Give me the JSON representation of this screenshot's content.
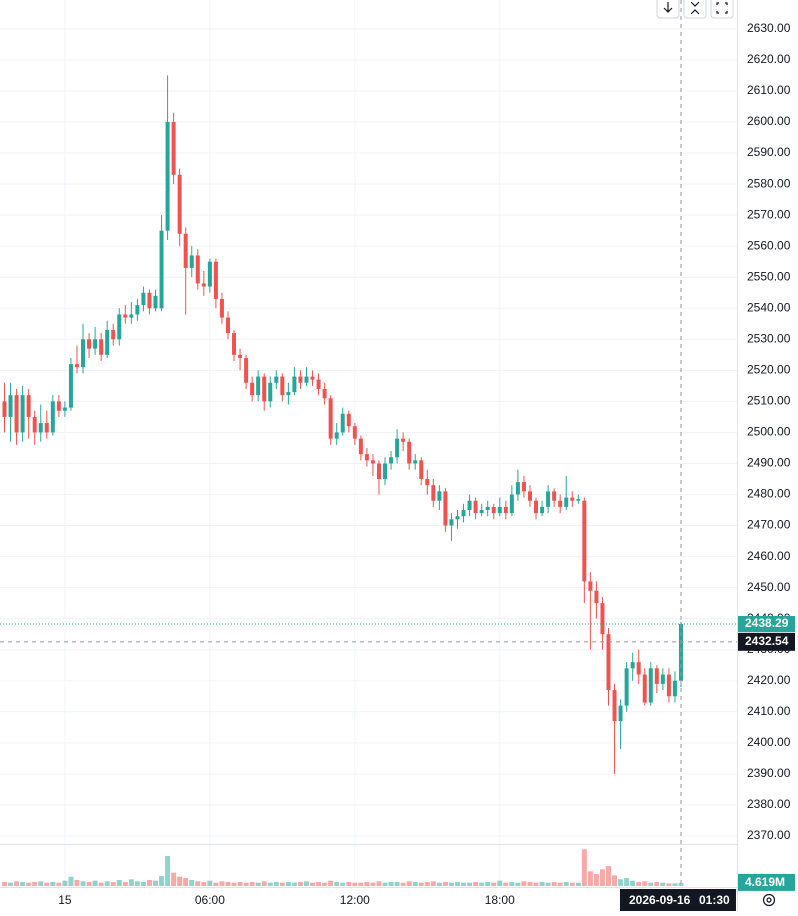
{
  "chart_data": {
    "type": "candlestick",
    "x": [
      "2026-09-14 21:30",
      "2026-09-14 21:45",
      "2026-09-14 22:00",
      "2026-09-14 22:15",
      "2026-09-14 22:30",
      "2026-09-14 22:45",
      "2026-09-14 23:00",
      "2026-09-14 23:15",
      "2026-09-14 23:30",
      "2026-09-14 23:45",
      "2026-09-15 00:00",
      "2026-09-15 00:15",
      "2026-09-15 00:30",
      "2026-09-15 00:45",
      "2026-09-15 01:00",
      "2026-09-15 01:15",
      "2026-09-15 01:30",
      "2026-09-15 01:45",
      "2026-09-15 02:00",
      "2026-09-15 02:15",
      "2026-09-15 02:30",
      "2026-09-15 02:45",
      "2026-09-15 03:00",
      "2026-09-15 03:15",
      "2026-09-15 03:30",
      "2026-09-15 03:45",
      "2026-09-15 04:00",
      "2026-09-15 04:15",
      "2026-09-15 04:30",
      "2026-09-15 04:45",
      "2026-09-15 05:00",
      "2026-09-15 05:15",
      "2026-09-15 05:30",
      "2026-09-15 05:45",
      "2026-09-15 06:00",
      "2026-09-15 06:15",
      "2026-09-15 06:30",
      "2026-09-15 06:45",
      "2026-09-15 07:00",
      "2026-09-15 07:15",
      "2026-09-15 07:30",
      "2026-09-15 07:45",
      "2026-09-15 08:00",
      "2026-09-15 08:15",
      "2026-09-15 08:30",
      "2026-09-15 08:45",
      "2026-09-15 09:00",
      "2026-09-15 09:15",
      "2026-09-15 09:30",
      "2026-09-15 09:45",
      "2026-09-15 10:00",
      "2026-09-15 10:15",
      "2026-09-15 10:30",
      "2026-09-15 10:45",
      "2026-09-15 11:00",
      "2026-09-15 11:15",
      "2026-09-15 11:30",
      "2026-09-15 11:45",
      "2026-09-15 12:00",
      "2026-09-15 12:15",
      "2026-09-15 12:30",
      "2026-09-15 12:45",
      "2026-09-15 13:00",
      "2026-09-15 13:15",
      "2026-09-15 13:30",
      "2026-09-15 13:45",
      "2026-09-15 14:00",
      "2026-09-15 14:15",
      "2026-09-15 14:30",
      "2026-09-15 14:45",
      "2026-09-15 15:00",
      "2026-09-15 15:15",
      "2026-09-15 15:30",
      "2026-09-15 15:45",
      "2026-09-15 16:00",
      "2026-09-15 16:15",
      "2026-09-15 16:30",
      "2026-09-15 16:45",
      "2026-09-15 17:00",
      "2026-09-15 17:15",
      "2026-09-15 17:30",
      "2026-09-15 17:45",
      "2026-09-15 18:00",
      "2026-09-15 18:15",
      "2026-09-15 18:30",
      "2026-09-15 18:45",
      "2026-09-15 19:00",
      "2026-09-15 19:15",
      "2026-09-15 19:30",
      "2026-09-15 19:45",
      "2026-09-15 20:00",
      "2026-09-15 20:15",
      "2026-09-15 20:30",
      "2026-09-15 20:45",
      "2026-09-15 21:00",
      "2026-09-15 21:15",
      "2026-09-15 21:30",
      "2026-09-15 21:45",
      "2026-09-15 22:00",
      "2026-09-15 22:15",
      "2026-09-15 22:30",
      "2026-09-15 22:45",
      "2026-09-15 23:00",
      "2026-09-15 23:15",
      "2026-09-15 23:30",
      "2026-09-15 23:45",
      "2026-09-16 00:00",
      "2026-09-16 00:15",
      "2026-09-16 00:30",
      "2026-09-16 00:45",
      "2026-09-16 01:00",
      "2026-09-16 01:15",
      "2026-09-16 01:30"
    ],
    "open": [
      2510,
      2505,
      2512,
      2500,
      2512,
      2505,
      2500,
      2503,
      2500,
      2510,
      2507,
      2508,
      2522,
      2521,
      2530,
      2527,
      2530,
      2525,
      2533,
      2530,
      2538,
      2537,
      2538,
      2541,
      2545,
      2540,
      2540,
      2565,
      2600,
      2583,
      2564,
      2553,
      2557,
      2548,
      2547,
      2555,
      2543,
      2537,
      2532,
      2525,
      2524,
      2516,
      2512,
      2518,
      2510,
      2516,
      2518,
      2512,
      2513,
      2518,
      2516,
      2518,
      2517,
      2514,
      2511,
      2498,
      2500,
      2506,
      2502,
      2498,
      2493,
      2491,
      2490,
      2485,
      2490,
      2492,
      2498,
      2497,
      2490,
      2491,
      2485,
      2483,
      2478,
      2481,
      2470,
      2472,
      2473,
      2475,
      2478,
      2474,
      2475,
      2476,
      2474,
      2476,
      2474,
      2480,
      2484,
      2481,
      2478,
      2474,
      2476,
      2481,
      2478,
      2476,
      2479,
      2478,
      2478,
      2452,
      2449,
      2445,
      2435,
      2417,
      2407,
      2412,
      2424,
      2426,
      2422,
      2413,
      2424,
      2419,
      2422,
      2415,
      2420
    ],
    "high": [
      2516,
      2516,
      2514,
      2515,
      2514,
      2507,
      2509,
      2507,
      2512,
      2512,
      2510,
      2524,
      2528,
      2535,
      2532,
      2534,
      2532,
      2536,
      2535,
      2540,
      2541,
      2542,
      2543,
      2547,
      2546,
      2546,
      2570,
      2615,
      2603,
      2585,
      2566,
      2560,
      2559,
      2552,
      2556,
      2556,
      2545,
      2539,
      2533,
      2527,
      2525,
      2518,
      2520,
      2519,
      2518,
      2520,
      2519,
      2516,
      2521,
      2520,
      2521,
      2520,
      2519,
      2516,
      2512,
      2503,
      2508,
      2507,
      2503,
      2499,
      2495,
      2493,
      2491,
      2492,
      2494,
      2501,
      2500,
      2498,
      2493,
      2492,
      2488,
      2485,
      2483,
      2482,
      2474,
      2475,
      2477,
      2480,
      2479,
      2477,
      2478,
      2477,
      2479,
      2478,
      2483,
      2488,
      2486,
      2483,
      2479,
      2478,
      2483,
      2482,
      2480,
      2486,
      2481,
      2480,
      2479,
      2455,
      2452,
      2447,
      2437,
      2419,
      2414,
      2426,
      2429,
      2430,
      2424,
      2426,
      2425,
      2424,
      2424,
      2423,
      2439
    ],
    "low": [
      2500,
      2497,
      2496,
      2497,
      2498,
      2496,
      2497,
      2498,
      2499,
      2505,
      2505,
      2507,
      2519,
      2519,
      2524,
      2525,
      2523,
      2524,
      2528,
      2528,
      2535,
      2535,
      2536,
      2539,
      2538,
      2539,
      2539,
      2562,
      2580,
      2560,
      2538,
      2550,
      2546,
      2544,
      2545,
      2540,
      2535,
      2530,
      2523,
      2520,
      2514,
      2510,
      2510,
      2507,
      2508,
      2514,
      2510,
      2509,
      2512,
      2514,
      2515,
      2515,
      2512,
      2509,
      2496,
      2496,
      2499,
      2500,
      2496,
      2491,
      2489,
      2486,
      2480,
      2483,
      2488,
      2490,
      2494,
      2488,
      2488,
      2483,
      2480,
      2476,
      2475,
      2468,
      2465,
      2469,
      2471,
      2473,
      2472,
      2473,
      2473,
      2472,
      2473,
      2472,
      2473,
      2478,
      2479,
      2476,
      2472,
      2473,
      2474,
      2476,
      2474,
      2475,
      2476,
      2477,
      2445,
      2430,
      2440,
      2430,
      2412,
      2390,
      2398,
      2410,
      2420,
      2419,
      2412,
      2412,
      2416,
      2417,
      2413,
      2413,
      2418
    ],
    "close": [
      2505,
      2512,
      2500,
      2512,
      2505,
      2500,
      2503,
      2500,
      2510,
      2507,
      2508,
      2522,
      2521,
      2530,
      2527,
      2530,
      2525,
      2533,
      2530,
      2538,
      2537,
      2538,
      2541,
      2545,
      2540,
      2544,
      2565,
      2600,
      2583,
      2564,
      2553,
      2557,
      2548,
      2547,
      2555,
      2543,
      2537,
      2532,
      2525,
      2524,
      2516,
      2512,
      2518,
      2510,
      2516,
      2518,
      2512,
      2513,
      2518,
      2516,
      2518,
      2517,
      2514,
      2511,
      2498,
      2500,
      2506,
      2502,
      2498,
      2493,
      2491,
      2490,
      2485,
      2490,
      2492,
      2498,
      2497,
      2490,
      2491,
      2485,
      2483,
      2478,
      2481,
      2470,
      2472,
      2473,
      2475,
      2478,
      2474,
      2475,
      2476,
      2474,
      2476,
      2474,
      2480,
      2484,
      2481,
      2478,
      2474,
      2476,
      2481,
      2478,
      2476,
      2479,
      2478,
      2478.5,
      2452,
      2449,
      2445,
      2435,
      2417,
      2407,
      2412,
      2424,
      2426,
      2422,
      2413,
      2424,
      2419,
      2422,
      2415,
      2420,
      2438.29
    ],
    "close_last_label": "2438.29",
    "volume": [
      6,
      5,
      7,
      6,
      5,
      6,
      7,
      5,
      6,
      5,
      8,
      14,
      9,
      7,
      6,
      8,
      5,
      7,
      6,
      9,
      6,
      10,
      7,
      6,
      9,
      8,
      15,
      45,
      20,
      14,
      12,
      9,
      7,
      6,
      8,
      5,
      7,
      6,
      5,
      6,
      5,
      6,
      5,
      7,
      5,
      6,
      5,
      6,
      5,
      6,
      7,
      5,
      6,
      5,
      8,
      6,
      5,
      6,
      5,
      5,
      6,
      5,
      7,
      5,
      6,
      6,
      5,
      7,
      6,
      5,
      6,
      7,
      5,
      6,
      5,
      6,
      5,
      5,
      6,
      5,
      6,
      5,
      8,
      5,
      6,
      5,
      7,
      6,
      5,
      6,
      5,
      6,
      5,
      6,
      5,
      5,
      55,
      22,
      18,
      25,
      30,
      16,
      10,
      12,
      8,
      6,
      7,
      5,
      6,
      5,
      4,
      4,
      4.619
    ],
    "volume_last_label": "4.619M",
    "volume_lim": [
      0,
      60
    ],
    "ylim": [
      2368.7,
      2639.3
    ],
    "yticks": [
      {
        "value": 2370,
        "label": "2370.00"
      },
      {
        "value": 2380,
        "label": "2380.00"
      },
      {
        "value": 2390,
        "label": "2390.00"
      },
      {
        "value": 2400,
        "label": "2400.00"
      },
      {
        "value": 2410,
        "label": "2410.00"
      },
      {
        "value": 2420,
        "label": "2420.00"
      },
      {
        "value": 2430,
        "label": "2430.00"
      },
      {
        "value": 2440,
        "label": "2440.00"
      },
      {
        "value": 2450,
        "label": "2450.00"
      },
      {
        "value": 2460,
        "label": "2460.00"
      },
      {
        "value": 2470,
        "label": "2470.00"
      },
      {
        "value": 2480,
        "label": "2480.00"
      },
      {
        "value": 2490,
        "label": "2490.00"
      },
      {
        "value": 2500,
        "label": "2500.00"
      },
      {
        "value": 2510,
        "label": "2510.00"
      },
      {
        "value": 2520,
        "label": "2520.00"
      },
      {
        "value": 2530,
        "label": "2530.00"
      },
      {
        "value": 2540,
        "label": "2540.00"
      },
      {
        "value": 2550,
        "label": "2550.00"
      },
      {
        "value": 2560,
        "label": "2560.00"
      },
      {
        "value": 2570,
        "label": "2570.00"
      },
      {
        "value": 2580,
        "label": "2580.00"
      },
      {
        "value": 2590,
        "label": "2590.00"
      },
      {
        "value": 2600,
        "label": "2600.00"
      },
      {
        "value": 2610,
        "label": "2610.00"
      },
      {
        "value": 2620,
        "label": "2620.00"
      },
      {
        "value": 2630,
        "label": "2630.00"
      }
    ],
    "xticks": [
      {
        "value": "2026-09-15 00:00",
        "label": "15"
      },
      {
        "value": "2026-09-15 06:00",
        "label": "06:00"
      },
      {
        "value": "2026-09-15 12:00",
        "label": "12:00"
      },
      {
        "value": "2026-09-15 18:00",
        "label": "18:00"
      }
    ],
    "crosshair": {
      "price": 2432.54,
      "date": "2026-09-16",
      "time": "01:30"
    },
    "up_color": "#26a69a",
    "down_color": "#ef5350",
    "grid": true
  }
}
